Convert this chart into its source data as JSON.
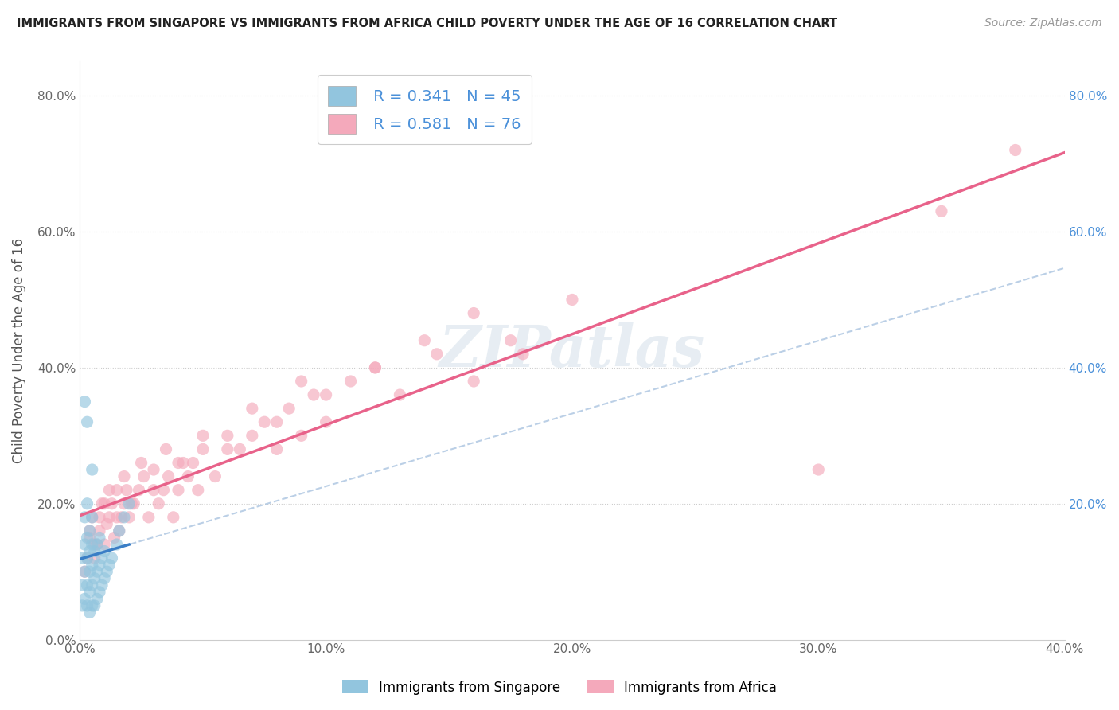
{
  "title": "IMMIGRANTS FROM SINGAPORE VS IMMIGRANTS FROM AFRICA CHILD POVERTY UNDER THE AGE OF 16 CORRELATION CHART",
  "source": "Source: ZipAtlas.com",
  "ylabel": "Child Poverty Under the Age of 16",
  "legend_singapore": "Immigrants from Singapore",
  "legend_africa": "Immigrants from Africa",
  "R_singapore": 0.341,
  "N_singapore": 45,
  "R_africa": 0.581,
  "N_africa": 76,
  "xlim": [
    0.0,
    0.4
  ],
  "ylim": [
    0.0,
    0.85
  ],
  "yticks_left": [
    0.0,
    0.2,
    0.4,
    0.6,
    0.8
  ],
  "yticks_right": [
    0.2,
    0.4,
    0.6,
    0.8
  ],
  "xticks": [
    0.0,
    0.1,
    0.2,
    0.3,
    0.4
  ],
  "color_singapore": "#92c5de",
  "color_africa": "#f4a9bb",
  "trendline_singapore": "#3a7ec6",
  "trendline_africa": "#e8628a",
  "trendline_sg_dashed_color": "#aac4e0",
  "background_color": "#ffffff",
  "sg_x": [
    0.001,
    0.001,
    0.001,
    0.002,
    0.002,
    0.002,
    0.002,
    0.003,
    0.003,
    0.003,
    0.003,
    0.003,
    0.004,
    0.004,
    0.004,
    0.004,
    0.004,
    0.005,
    0.005,
    0.005,
    0.005,
    0.005,
    0.006,
    0.006,
    0.006,
    0.007,
    0.007,
    0.007,
    0.008,
    0.008,
    0.008,
    0.009,
    0.009,
    0.01,
    0.01,
    0.011,
    0.012,
    0.013,
    0.015,
    0.016,
    0.018,
    0.02,
    0.005,
    0.003,
    0.002
  ],
  "sg_y": [
    0.05,
    0.08,
    0.12,
    0.06,
    0.1,
    0.14,
    0.18,
    0.05,
    0.08,
    0.12,
    0.15,
    0.2,
    0.04,
    0.07,
    0.1,
    0.13,
    0.16,
    0.05,
    0.08,
    0.11,
    0.14,
    0.18,
    0.05,
    0.09,
    0.13,
    0.06,
    0.1,
    0.14,
    0.07,
    0.11,
    0.15,
    0.08,
    0.12,
    0.09,
    0.13,
    0.1,
    0.11,
    0.12,
    0.14,
    0.16,
    0.18,
    0.2,
    0.25,
    0.32,
    0.35
  ],
  "af_x": [
    0.002,
    0.003,
    0.004,
    0.005,
    0.006,
    0.007,
    0.008,
    0.009,
    0.01,
    0.011,
    0.012,
    0.013,
    0.014,
    0.015,
    0.016,
    0.017,
    0.018,
    0.019,
    0.02,
    0.022,
    0.024,
    0.026,
    0.028,
    0.03,
    0.032,
    0.034,
    0.036,
    0.038,
    0.04,
    0.042,
    0.044,
    0.046,
    0.048,
    0.05,
    0.055,
    0.06,
    0.065,
    0.07,
    0.075,
    0.08,
    0.085,
    0.09,
    0.095,
    0.1,
    0.11,
    0.12,
    0.13,
    0.145,
    0.16,
    0.175,
    0.004,
    0.006,
    0.008,
    0.01,
    0.012,
    0.015,
    0.018,
    0.021,
    0.025,
    0.03,
    0.035,
    0.04,
    0.05,
    0.06,
    0.07,
    0.08,
    0.09,
    0.1,
    0.12,
    0.14,
    0.16,
    0.18,
    0.2,
    0.3,
    0.35,
    0.38
  ],
  "af_y": [
    0.1,
    0.12,
    0.15,
    0.18,
    0.12,
    0.14,
    0.16,
    0.2,
    0.14,
    0.17,
    0.18,
    0.2,
    0.15,
    0.22,
    0.16,
    0.18,
    0.2,
    0.22,
    0.18,
    0.2,
    0.22,
    0.24,
    0.18,
    0.25,
    0.2,
    0.22,
    0.24,
    0.18,
    0.22,
    0.26,
    0.24,
    0.26,
    0.22,
    0.28,
    0.24,
    0.3,
    0.28,
    0.3,
    0.32,
    0.28,
    0.34,
    0.3,
    0.36,
    0.32,
    0.38,
    0.4,
    0.36,
    0.42,
    0.38,
    0.44,
    0.16,
    0.14,
    0.18,
    0.2,
    0.22,
    0.18,
    0.24,
    0.2,
    0.26,
    0.22,
    0.28,
    0.26,
    0.3,
    0.28,
    0.34,
    0.32,
    0.38,
    0.36,
    0.4,
    0.44,
    0.48,
    0.42,
    0.5,
    0.25,
    0.63,
    0.72
  ]
}
